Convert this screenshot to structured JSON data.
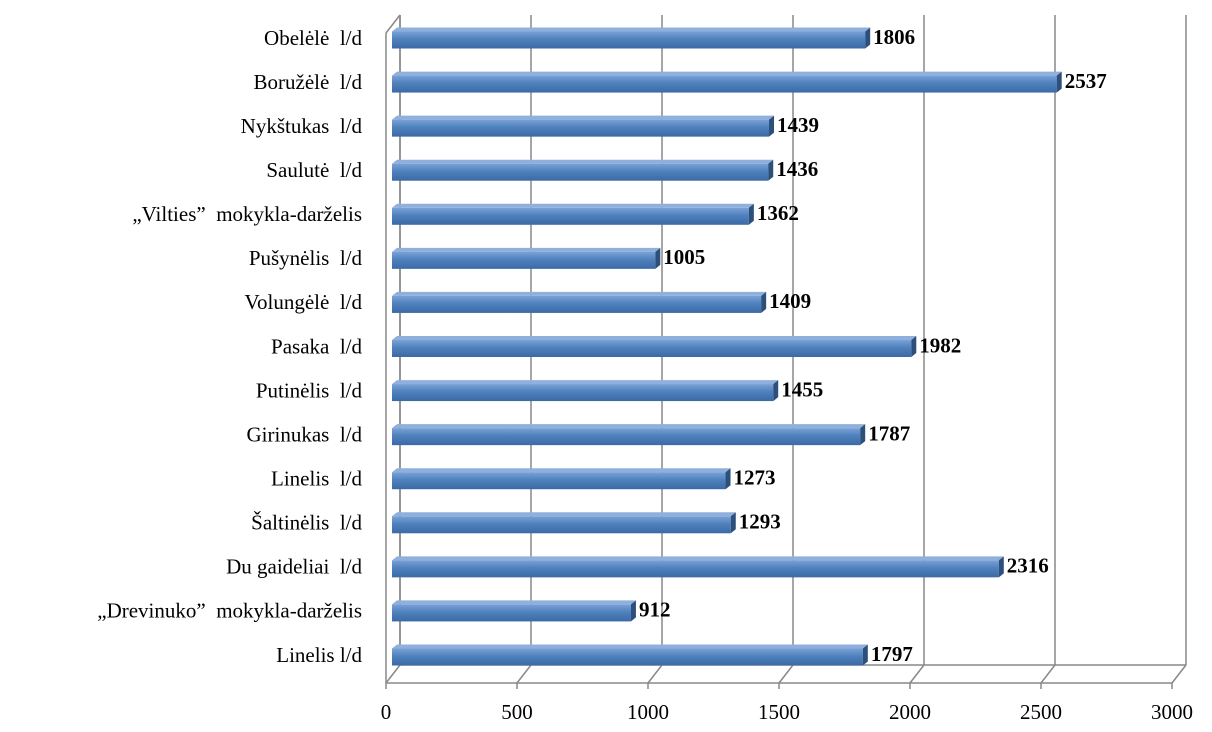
{
  "chart_data": {
    "type": "bar",
    "orientation": "horizontal",
    "categories": [
      "Obelėlė  l/d",
      "Boružėlė  l/d",
      "Nykštukas  l/d",
      "Saulutė  l/d",
      "„Vilties”  mokykla-darželis",
      "Pušynėlis  l/d",
      "Volungėlė  l/d",
      "Pasaka  l/d",
      "Putinėlis  l/d",
      "Girinukas  l/d",
      "Linelis  l/d",
      "Šaltinėlis  l/d",
      "Du gaideliai  l/d",
      "„Drevinuko”  mokykla-darželis",
      "Linelis l/d"
    ],
    "values": [
      1806,
      2537,
      1439,
      1436,
      1362,
      1005,
      1409,
      1982,
      1455,
      1787,
      1273,
      1293,
      2316,
      912,
      1797
    ],
    "color": "#4f81bd",
    "xlim": [
      0,
      3000
    ],
    "xticks": [
      0,
      500,
      1000,
      1500,
      2000,
      2500,
      3000
    ],
    "grid": true
  }
}
